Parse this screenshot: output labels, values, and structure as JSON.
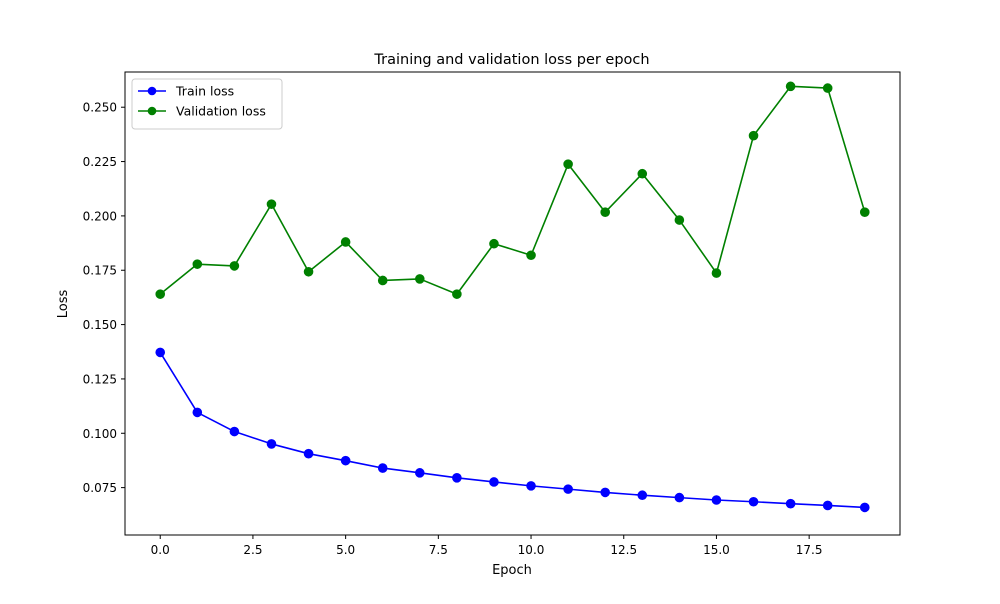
{
  "chart_data": {
    "type": "line",
    "title": "Training and validation loss per epoch",
    "xlabel": "Epoch",
    "ylabel": "Loss",
    "xlim": [
      -0.95,
      19.95
    ],
    "ylim": [
      0.0532,
      0.2662
    ],
    "grid": false,
    "legend_position": "top-left",
    "x_ticks": [
      0.0,
      2.5,
      5.0,
      7.5,
      10.0,
      12.5,
      15.0,
      17.5
    ],
    "x_tick_labels": [
      "0.0",
      "2.5",
      "5.0",
      "7.5",
      "10.0",
      "12.5",
      "15.0",
      "17.5"
    ],
    "y_ticks": [
      0.075,
      0.1,
      0.125,
      0.15,
      0.175,
      0.2,
      0.225,
      0.25
    ],
    "y_tick_labels": [
      "0.075",
      "0.100",
      "0.125",
      "0.150",
      "0.175",
      "0.200",
      "0.225",
      "0.250"
    ],
    "x": [
      0,
      1,
      2,
      3,
      4,
      5,
      6,
      7,
      8,
      9,
      10,
      11,
      12,
      13,
      14,
      15,
      16,
      17,
      18,
      19
    ],
    "series": [
      {
        "name": "Train loss",
        "color": "#0000ff",
        "marker": "circle",
        "values": [
          0.1372,
          0.1096,
          0.1008,
          0.0951,
          0.0906,
          0.0874,
          0.084,
          0.0818,
          0.0795,
          0.0776,
          0.0758,
          0.0743,
          0.0728,
          0.0715,
          0.0704,
          0.0693,
          0.0685,
          0.0676,
          0.0668,
          0.0659
        ]
      },
      {
        "name": "Validation loss",
        "color": "#008000",
        "marker": "circle",
        "values": [
          0.164,
          0.1778,
          0.177,
          0.2054,
          0.1743,
          0.188,
          0.1703,
          0.171,
          0.164,
          0.1872,
          0.1819,
          0.2238,
          0.2017,
          0.2194,
          0.1981,
          0.1737,
          0.2369,
          0.2596,
          0.2588,
          0.2017
        ]
      }
    ]
  }
}
